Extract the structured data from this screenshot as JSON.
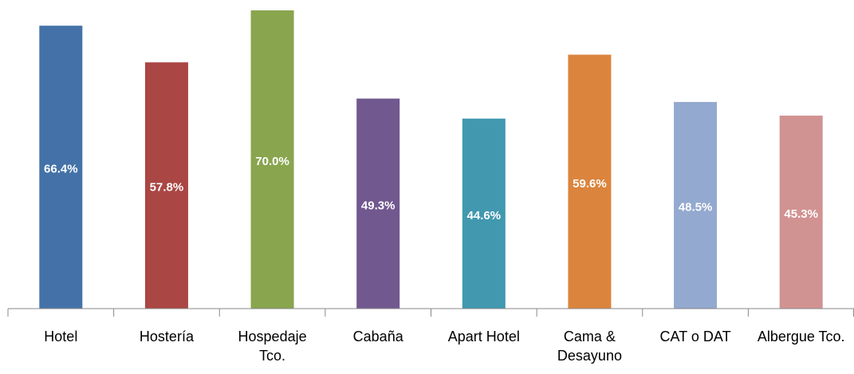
{
  "chart_data": {
    "type": "bar",
    "categories": [
      "Hotel",
      "Hostería",
      "Hospedaje Tco.",
      "Cabaña",
      "Apart Hotel",
      "Cama & Desayuno",
      "CAT o DAT",
      "Albergue Tco."
    ],
    "values": [
      66.4,
      57.8,
      70.0,
      49.3,
      44.6,
      59.6,
      48.5,
      45.3
    ],
    "value_labels": [
      "66.4%",
      "57.8%",
      "70.0%",
      "49.3%",
      "44.6%",
      "59.6%",
      "48.5%",
      "45.3%"
    ],
    "colors": [
      "#4472a8",
      "#aa4643",
      "#89a54e",
      "#71588f",
      "#4198af",
      "#db843d",
      "#93a9cf",
      "#d19392"
    ]
  }
}
